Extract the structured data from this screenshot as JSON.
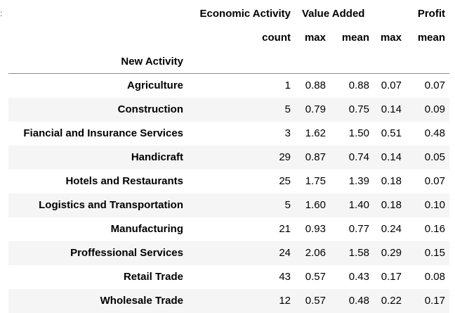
{
  "index_name": "New Activity",
  "column_groups": {
    "economic_activity": "Economic Activity",
    "value_added": "Value Added",
    "profit": "Profit"
  },
  "column_stats": {
    "ea_count": "count",
    "va_max": "max",
    "va_mean": "mean",
    "p_max": "max",
    "p_mean": "mean"
  },
  "rows": [
    {
      "name": "Agriculture",
      "count": "1",
      "va_max": "0.88",
      "va_mean": "0.88",
      "p_max": "0.07",
      "p_mean": "0.07"
    },
    {
      "name": "Construction",
      "count": "5",
      "va_max": "0.79",
      "va_mean": "0.75",
      "p_max": "0.14",
      "p_mean": "0.09"
    },
    {
      "name": "Fiancial and Insurance Services",
      "count": "3",
      "va_max": "1.62",
      "va_mean": "1.50",
      "p_max": "0.51",
      "p_mean": "0.48"
    },
    {
      "name": "Handicraft",
      "count": "29",
      "va_max": "0.87",
      "va_mean": "0.74",
      "p_max": "0.14",
      "p_mean": "0.05"
    },
    {
      "name": "Hotels and Restaurants",
      "count": "25",
      "va_max": "1.75",
      "va_mean": "1.39",
      "p_max": "0.18",
      "p_mean": "0.07"
    },
    {
      "name": "Logistics and Transportation",
      "count": "5",
      "va_max": "1.60",
      "va_mean": "1.40",
      "p_max": "0.18",
      "p_mean": "0.10"
    },
    {
      "name": "Manufacturing",
      "count": "21",
      "va_max": "0.93",
      "va_mean": "0.77",
      "p_max": "0.24",
      "p_mean": "0.16"
    },
    {
      "name": "Proffessional Services",
      "count": "24",
      "va_max": "2.06",
      "va_mean": "1.58",
      "p_max": "0.29",
      "p_mean": "0.15"
    },
    {
      "name": "Retail Trade",
      "count": "43",
      "va_max": "0.57",
      "va_mean": "0.43",
      "p_max": "0.17",
      "p_mean": "0.08"
    },
    {
      "name": "Wholesale Trade",
      "count": "12",
      "va_max": "0.57",
      "va_mean": "0.48",
      "p_max": "0.22",
      "p_mean": "0.17"
    }
  ],
  "colors": {
    "row_stripe": "#f5f5f5",
    "header_rule": "#8a8a8a"
  }
}
